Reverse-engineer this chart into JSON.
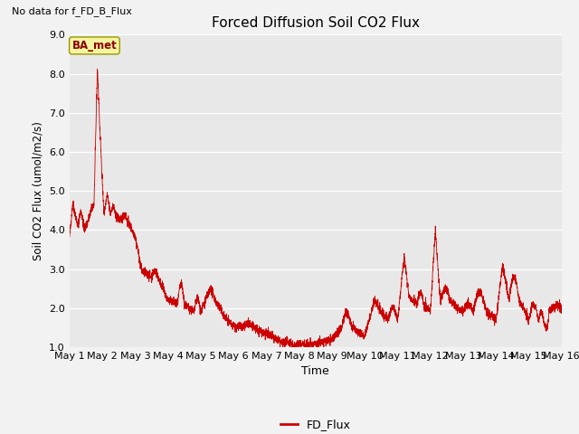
{
  "title": "Forced Diffusion Soil CO2 Flux",
  "xlabel": "Time",
  "ylabel": "Soil CO2 Flux (umol/m2/s)",
  "no_data_text": "No data for f_FD_B_Flux",
  "ba_met_label": "BA_met",
  "legend_label": "FD_Flux",
  "line_color": "#cc0000",
  "ylim": [
    1.0,
    9.0
  ],
  "yticks": [
    1.0,
    2.0,
    3.0,
    4.0,
    5.0,
    6.0,
    7.0,
    8.0,
    9.0
  ],
  "plot_bg_color": "#e8e8e8",
  "fig_bg_color": "#f2f2f2",
  "grid_color": "#ffffff",
  "num_points": 4000
}
